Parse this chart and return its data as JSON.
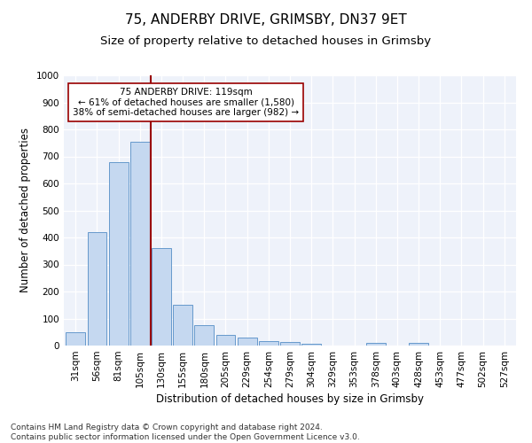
{
  "title1": "75, ANDERBY DRIVE, GRIMSBY, DN37 9ET",
  "title2": "Size of property relative to detached houses in Grimsby",
  "xlabel": "Distribution of detached houses by size in Grimsby",
  "ylabel": "Number of detached properties",
  "bar_labels": [
    "31sqm",
    "56sqm",
    "81sqm",
    "105sqm",
    "130sqm",
    "155sqm",
    "180sqm",
    "205sqm",
    "229sqm",
    "254sqm",
    "279sqm",
    "304sqm",
    "329sqm",
    "353sqm",
    "378sqm",
    "403sqm",
    "428sqm",
    "453sqm",
    "477sqm",
    "502sqm",
    "527sqm"
  ],
  "bar_values": [
    50,
    420,
    680,
    755,
    360,
    150,
    75,
    40,
    28,
    15,
    12,
    8,
    0,
    0,
    10,
    0,
    10,
    0,
    0,
    0,
    0
  ],
  "bar_color": "#c5d8f0",
  "bar_edge_color": "#6699cc",
  "background_color": "#eef2fa",
  "vline_color": "#990000",
  "vline_x_index": 3.5,
  "annotation_text": "75 ANDERBY DRIVE: 119sqm\n← 61% of detached houses are smaller (1,580)\n38% of semi-detached houses are larger (982) →",
  "annotation_box_facecolor": "#ffffff",
  "annotation_box_edgecolor": "#990000",
  "ylim": [
    0,
    1000
  ],
  "yticks": [
    0,
    100,
    200,
    300,
    400,
    500,
    600,
    700,
    800,
    900,
    1000
  ],
  "footer": "Contains HM Land Registry data © Crown copyright and database right 2024.\nContains public sector information licensed under the Open Government Licence v3.0.",
  "title1_fontsize": 11,
  "title2_fontsize": 9.5,
  "ylabel_fontsize": 8.5,
  "xlabel_fontsize": 8.5,
  "tick_fontsize": 7.5,
  "annotation_fontsize": 7.5,
  "footer_fontsize": 6.5
}
